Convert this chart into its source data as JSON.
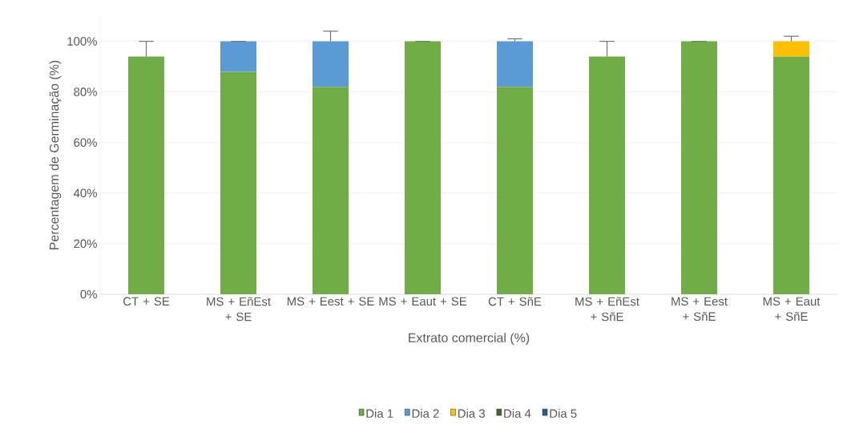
{
  "chart_data": {
    "type": "bar",
    "stacked": true,
    "xlabel": "Extrato comercial (%)",
    "ylabel": "Percentagem de Germinação (%)",
    "categories": [
      "CT + SE",
      "MS + EñEst + SE",
      "MS + Eest + SE",
      "MS + Eaut + SE",
      "CT + SñE",
      "MS + EñEst + SñE",
      "MS + Eest + SñE",
      "MS + Eaut + SñE"
    ],
    "series": [
      {
        "name": "Dia 1",
        "color": "#70ad47",
        "values": [
          94,
          88,
          82,
          100,
          82,
          94,
          100,
          94
        ],
        "errors": [
          [
            94,
            100
          ],
          null,
          null,
          [
            100,
            100
          ],
          null,
          [
            94,
            100
          ],
          [
            100,
            100
          ],
          null
        ]
      },
      {
        "name": "Dia 2",
        "color": "#5b9bd5",
        "values": [
          0,
          12,
          18,
          0,
          18,
          0,
          0,
          0
        ],
        "errors": [
          null,
          [
            100,
            100
          ],
          [
            100,
            104
          ],
          null,
          [
            100,
            101
          ],
          null,
          null,
          null
        ]
      },
      {
        "name": "Dia 3",
        "color": "#ffc000",
        "values": [
          0,
          0,
          0,
          0,
          0,
          0,
          0,
          6
        ],
        "errors": [
          null,
          null,
          null,
          null,
          null,
          null,
          null,
          [
            100,
            102
          ]
        ]
      },
      {
        "name": "Dia 4",
        "color": "#43682b",
        "values": [
          0,
          0,
          0,
          0,
          0,
          0,
          0,
          0
        ]
      },
      {
        "name": "Dia 5",
        "color": "#255e91",
        "values": [
          0,
          0,
          0,
          0,
          0,
          0,
          0,
          0
        ]
      }
    ],
    "ylim": [
      0,
      110
    ],
    "yticks": [
      {
        "value": 0,
        "label": "0%"
      },
      {
        "value": 20,
        "label": "20%"
      },
      {
        "value": 40,
        "label": "40%"
      },
      {
        "value": 60,
        "label": "60%"
      },
      {
        "value": 80,
        "label": "80%"
      },
      {
        "value": 100,
        "label": "100%"
      }
    ],
    "grid": "y",
    "legend": "bottom"
  }
}
